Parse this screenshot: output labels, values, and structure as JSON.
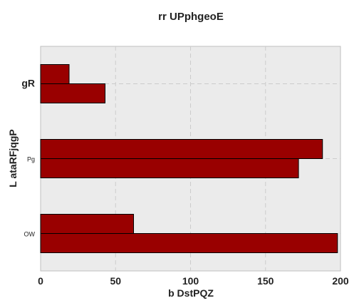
{
  "chart_data": {
    "type": "bar",
    "orientation": "horizontal",
    "title": "rr UPphgeoE",
    "xlabel": "b DstPQZ",
    "ylabel": "L ataRFjqgP",
    "categories": [
      "gR",
      "Pg",
      "OW"
    ],
    "series": [
      {
        "values": [
          19,
          188,
          62
        ]
      },
      {
        "values": [
          43,
          172,
          198
        ]
      }
    ],
    "xlim": [
      0,
      200
    ],
    "xticks": [
      "0",
      "50",
      "100",
      "150",
      "200"
    ],
    "grid": true,
    "bar_color": "#990000",
    "bar_edge_color": "#000000",
    "plot_background": "#ebebeb"
  }
}
